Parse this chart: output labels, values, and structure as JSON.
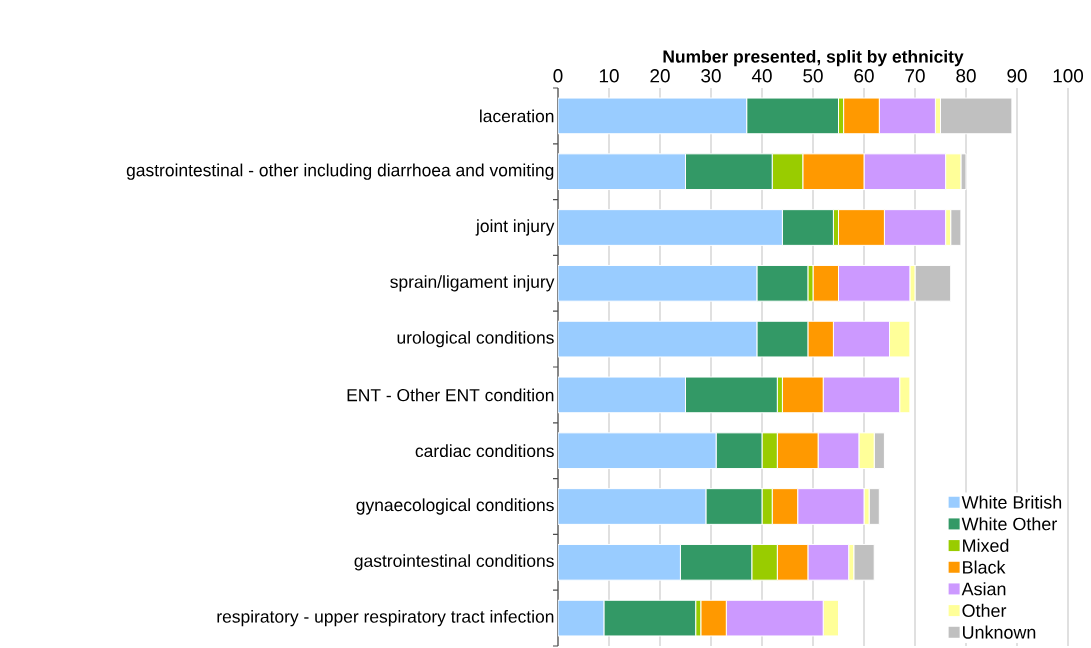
{
  "chart_data": {
    "type": "bar",
    "orientation": "horizontal",
    "stacked": true,
    "xlabel": "Number presented, split by ethnicity",
    "categories": [
      "laceration",
      "gastrointestinal - other including diarrhoea and vomiting",
      "joint injury",
      "sprain/ligament injury",
      "urological conditions",
      "ENT - Other ENT condition",
      "cardiac conditions",
      "gynaecological conditions",
      "gastrointestinal conditions",
      "respiratory - upper respiratory tract infection"
    ],
    "series": [
      {
        "name": "White British",
        "color": "#99ccff",
        "values": [
          37,
          25,
          44,
          39,
          39,
          25,
          31,
          29,
          24,
          9
        ]
      },
      {
        "name": "White Other",
        "color": "#339966",
        "values": [
          18,
          17,
          10,
          10,
          10,
          18,
          9,
          11,
          14,
          18
        ]
      },
      {
        "name": "Mixed",
        "color": "#99cc00",
        "values": [
          1,
          6,
          1,
          1,
          0,
          1,
          3,
          2,
          5,
          1
        ]
      },
      {
        "name": "Black",
        "color": "#ff9900",
        "values": [
          7,
          12,
          9,
          5,
          5,
          8,
          8,
          5,
          6,
          5
        ]
      },
      {
        "name": "Asian",
        "color": "#cc99ff",
        "values": [
          11,
          16,
          12,
          14,
          11,
          15,
          8,
          13,
          8,
          19
        ]
      },
      {
        "name": "Other",
        "color": "#ffff99",
        "values": [
          1,
          3,
          1,
          1,
          4,
          2,
          3,
          1,
          1,
          3
        ]
      },
      {
        "name": "Unknown",
        "color": "#c0c0c0",
        "values": [
          14,
          1,
          2,
          7,
          0,
          0,
          2,
          2,
          4,
          0
        ]
      }
    ],
    "xlim": [
      0,
      100
    ],
    "xticks": [
      0,
      10,
      20,
      30,
      40,
      50,
      60,
      70,
      80,
      90,
      100
    ],
    "grid": "x",
    "legend": "bottom right"
  }
}
